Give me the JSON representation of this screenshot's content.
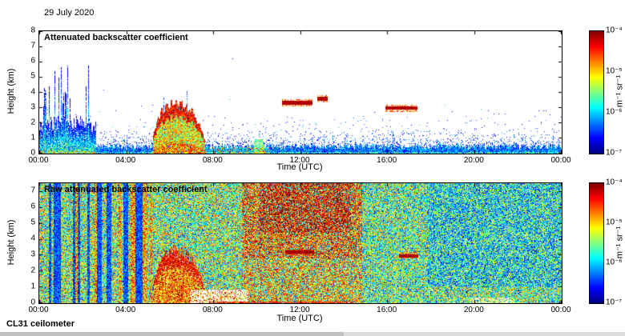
{
  "page": {
    "date_label": "29 July 2020",
    "footer_label": "CL31 ceilometer"
  },
  "chart_data": [
    {
      "type": "heatmap",
      "title": "Attenuated backscatter coefficient",
      "xlabel": "Time (UTC)",
      "ylabel": "Height (km)",
      "x_range_hours": [
        0,
        24
      ],
      "xticks": [
        "00:00",
        "04:00",
        "08:00",
        "12:00",
        "16:00",
        "20:00",
        "00:00"
      ],
      "y_range_km": [
        0,
        8
      ],
      "yticks": [
        0,
        1,
        2,
        3,
        4,
        5,
        6,
        7,
        8
      ],
      "colorbar": {
        "label": "m⁻¹ sr⁻¹",
        "ticks": [
          "10⁻⁴",
          "10⁻⁵",
          "10⁻⁶",
          "10⁻⁷"
        ],
        "scale_min": 1e-07,
        "scale_max": 0.0001,
        "colormap": "jet"
      },
      "features": {
        "boundary_layer": {
          "hours": [
            0,
            24
          ],
          "top_km": 0.5
        },
        "morning_aerosol": {
          "hours": [
            0,
            2.6
          ],
          "top_km": 2.6,
          "spike_top_km": 6.3
        },
        "precip_cloud": {
          "hours": [
            5.2,
            7.6
          ],
          "top_km": 3.5
        },
        "surface_precip": {
          "hours": [
            7.6,
            10.6
          ],
          "top_km": 0.45
        },
        "cloud_streaks": [
          {
            "hours": [
              11.15,
              12.55
            ],
            "base_km": 3.35
          },
          {
            "hours": [
              12.75,
              13.25
            ],
            "base_km": 3.6
          },
          {
            "hours": [
              15.9,
              17.35
            ],
            "base_km": 3.0
          }
        ]
      }
    },
    {
      "type": "heatmap",
      "title": "Raw attenuated backscatter coefficient",
      "xlabel": "Time (UTC)",
      "ylabel": "Height (km)",
      "x_range_hours": [
        0,
        24
      ],
      "xticks": [
        "00:00",
        "04:00",
        "08:00",
        "12:00",
        "16:00",
        "20:00",
        "00:00"
      ],
      "y_range_km": [
        0,
        7.5
      ],
      "yticks": [
        0,
        1,
        2,
        3,
        4,
        5,
        6,
        7
      ],
      "colorbar": {
        "label": "m⁻¹ sr⁻¹",
        "ticks": [
          "10⁻⁴",
          "10⁻⁵",
          "10⁻⁶",
          "10⁻⁷"
        ],
        "scale_min": 1e-07,
        "scale_max": 0.0001,
        "colormap": "jet"
      },
      "features": {
        "vertical_stripes": {
          "hours": [
            0.35,
            5.2
          ]
        },
        "precip_cloud": {
          "hours": [
            5.2,
            7.6
          ],
          "top_km": 3.5
        },
        "enhanced_noise": {
          "hours": [
            9.3,
            14.8
          ],
          "above_km": 2.8
        },
        "strong_noise": {
          "hours": [
            10.1,
            14.3
          ],
          "above_km": 4.4
        },
        "attenuated_white_patch": {
          "hours": [
            6.9,
            9.6
          ],
          "top_km": 0.85
        },
        "surface_precip_line": {
          "hours": [
            7.8,
            14.5
          ],
          "top_km": 0.12
        },
        "cloud_streaks": [
          {
            "hours": [
              11.3,
              12.6
            ],
            "base_km": 3.2
          },
          {
            "hours": [
              16.5,
              17.4
            ],
            "base_km": 3.0
          }
        ]
      }
    }
  ]
}
